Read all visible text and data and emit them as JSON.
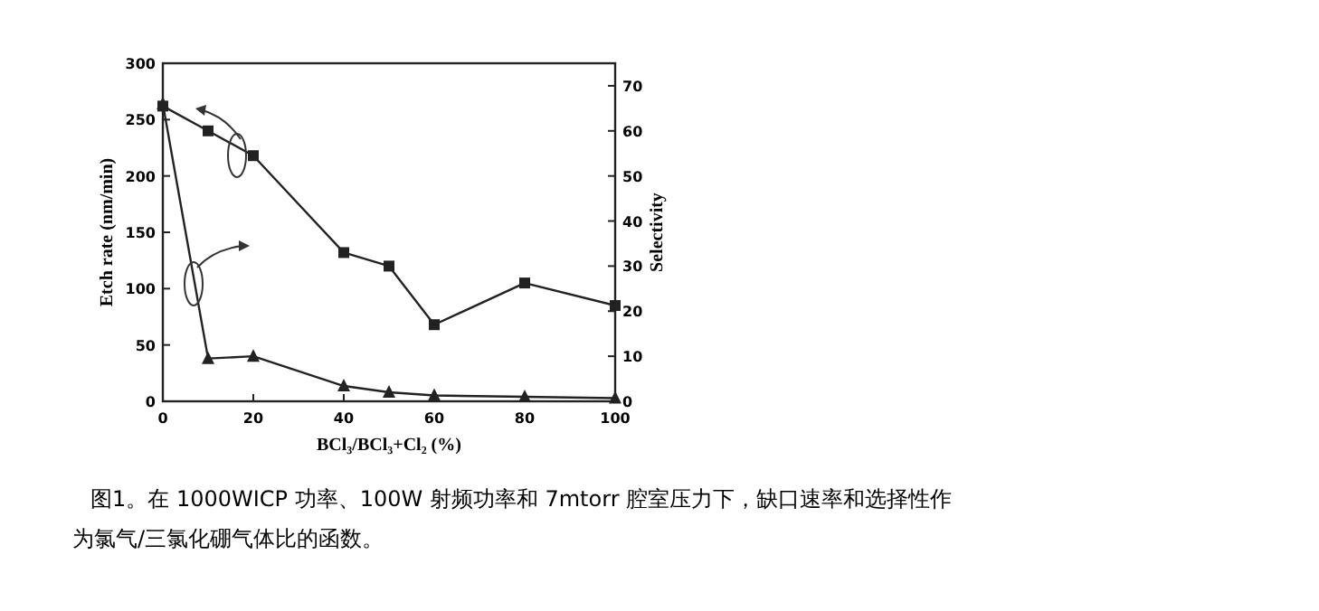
{
  "chart_data": {
    "type": "line",
    "xlabel": "BCl₃/BCl₃+Cl₂ (%)",
    "ylabel": "Etch rate (nm/min)",
    "y2label": "Selectivity",
    "x": [
      0,
      10,
      20,
      40,
      50,
      60,
      80,
      100
    ],
    "series": [
      {
        "marker": "square",
        "color": "#222222",
        "values": [
          262,
          240,
          218,
          132,
          120,
          68,
          105,
          85
        ]
      },
      {
        "marker": "triangle",
        "color": "#222222",
        "axis": "y2",
        "values": [
          66,
          9.5,
          10,
          3.4,
          2,
          1.3,
          1,
          0.7
        ]
      }
    ],
    "xlim": [
      0,
      100
    ],
    "xticks": [
      0,
      20,
      40,
      60,
      80,
      100
    ],
    "ylim": [
      0,
      300
    ],
    "yticks": [
      0,
      50,
      100,
      150,
      200,
      250,
      300
    ],
    "y2lim": [
      0,
      75
    ],
    "y2ticks": [
      0,
      10,
      20,
      30,
      40,
      50,
      60,
      70
    ],
    "grid": false,
    "annotations": [
      "图1。在 1000WICP 功率、100W 射频功率和 7mtorr 腔室压力下，缺口速率和选择性作为氯气/三氯化硼气体比的函数。"
    ]
  }
}
